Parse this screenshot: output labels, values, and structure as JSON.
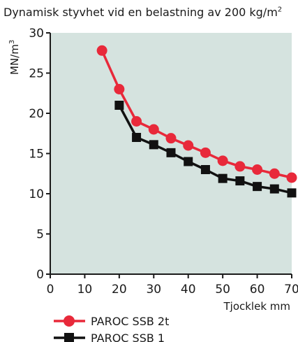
{
  "chart_data": {
    "type": "line",
    "title": "Dynamisk styvhet vid en belastning av 200 kg/m",
    "title_superscript": "2",
    "ylabel": "MN/m",
    "ylabel_superscript": "3",
    "xlabel": "Tjocklek mm",
    "xlim": [
      0,
      70
    ],
    "ylim": [
      0,
      30
    ],
    "xticks": [
      0,
      10,
      20,
      30,
      40,
      50,
      60,
      70
    ],
    "yticks": [
      0,
      5,
      10,
      15,
      20,
      25,
      30
    ],
    "grid": false,
    "legend_position": "bottom-left",
    "plot_background": "#d5e3df",
    "series": [
      {
        "name": "PAROC SSB 2t",
        "color": "#e8293a",
        "marker": "circle",
        "x": [
          15,
          20,
          25,
          30,
          35,
          40,
          45,
          50,
          55,
          60,
          65,
          70
        ],
        "y": [
          27.8,
          23.0,
          19.0,
          18.0,
          16.9,
          16.0,
          15.1,
          14.1,
          13.4,
          13.0,
          12.5,
          12.0
        ]
      },
      {
        "name": "PAROC SSB 1",
        "color": "#111111",
        "marker": "square",
        "x": [
          20,
          25,
          30,
          35,
          40,
          45,
          50,
          55,
          60,
          65,
          70
        ],
        "y": [
          21.0,
          17.0,
          16.1,
          15.1,
          14.0,
          13.0,
          11.9,
          11.6,
          10.9,
          10.6,
          10.1
        ]
      }
    ]
  }
}
